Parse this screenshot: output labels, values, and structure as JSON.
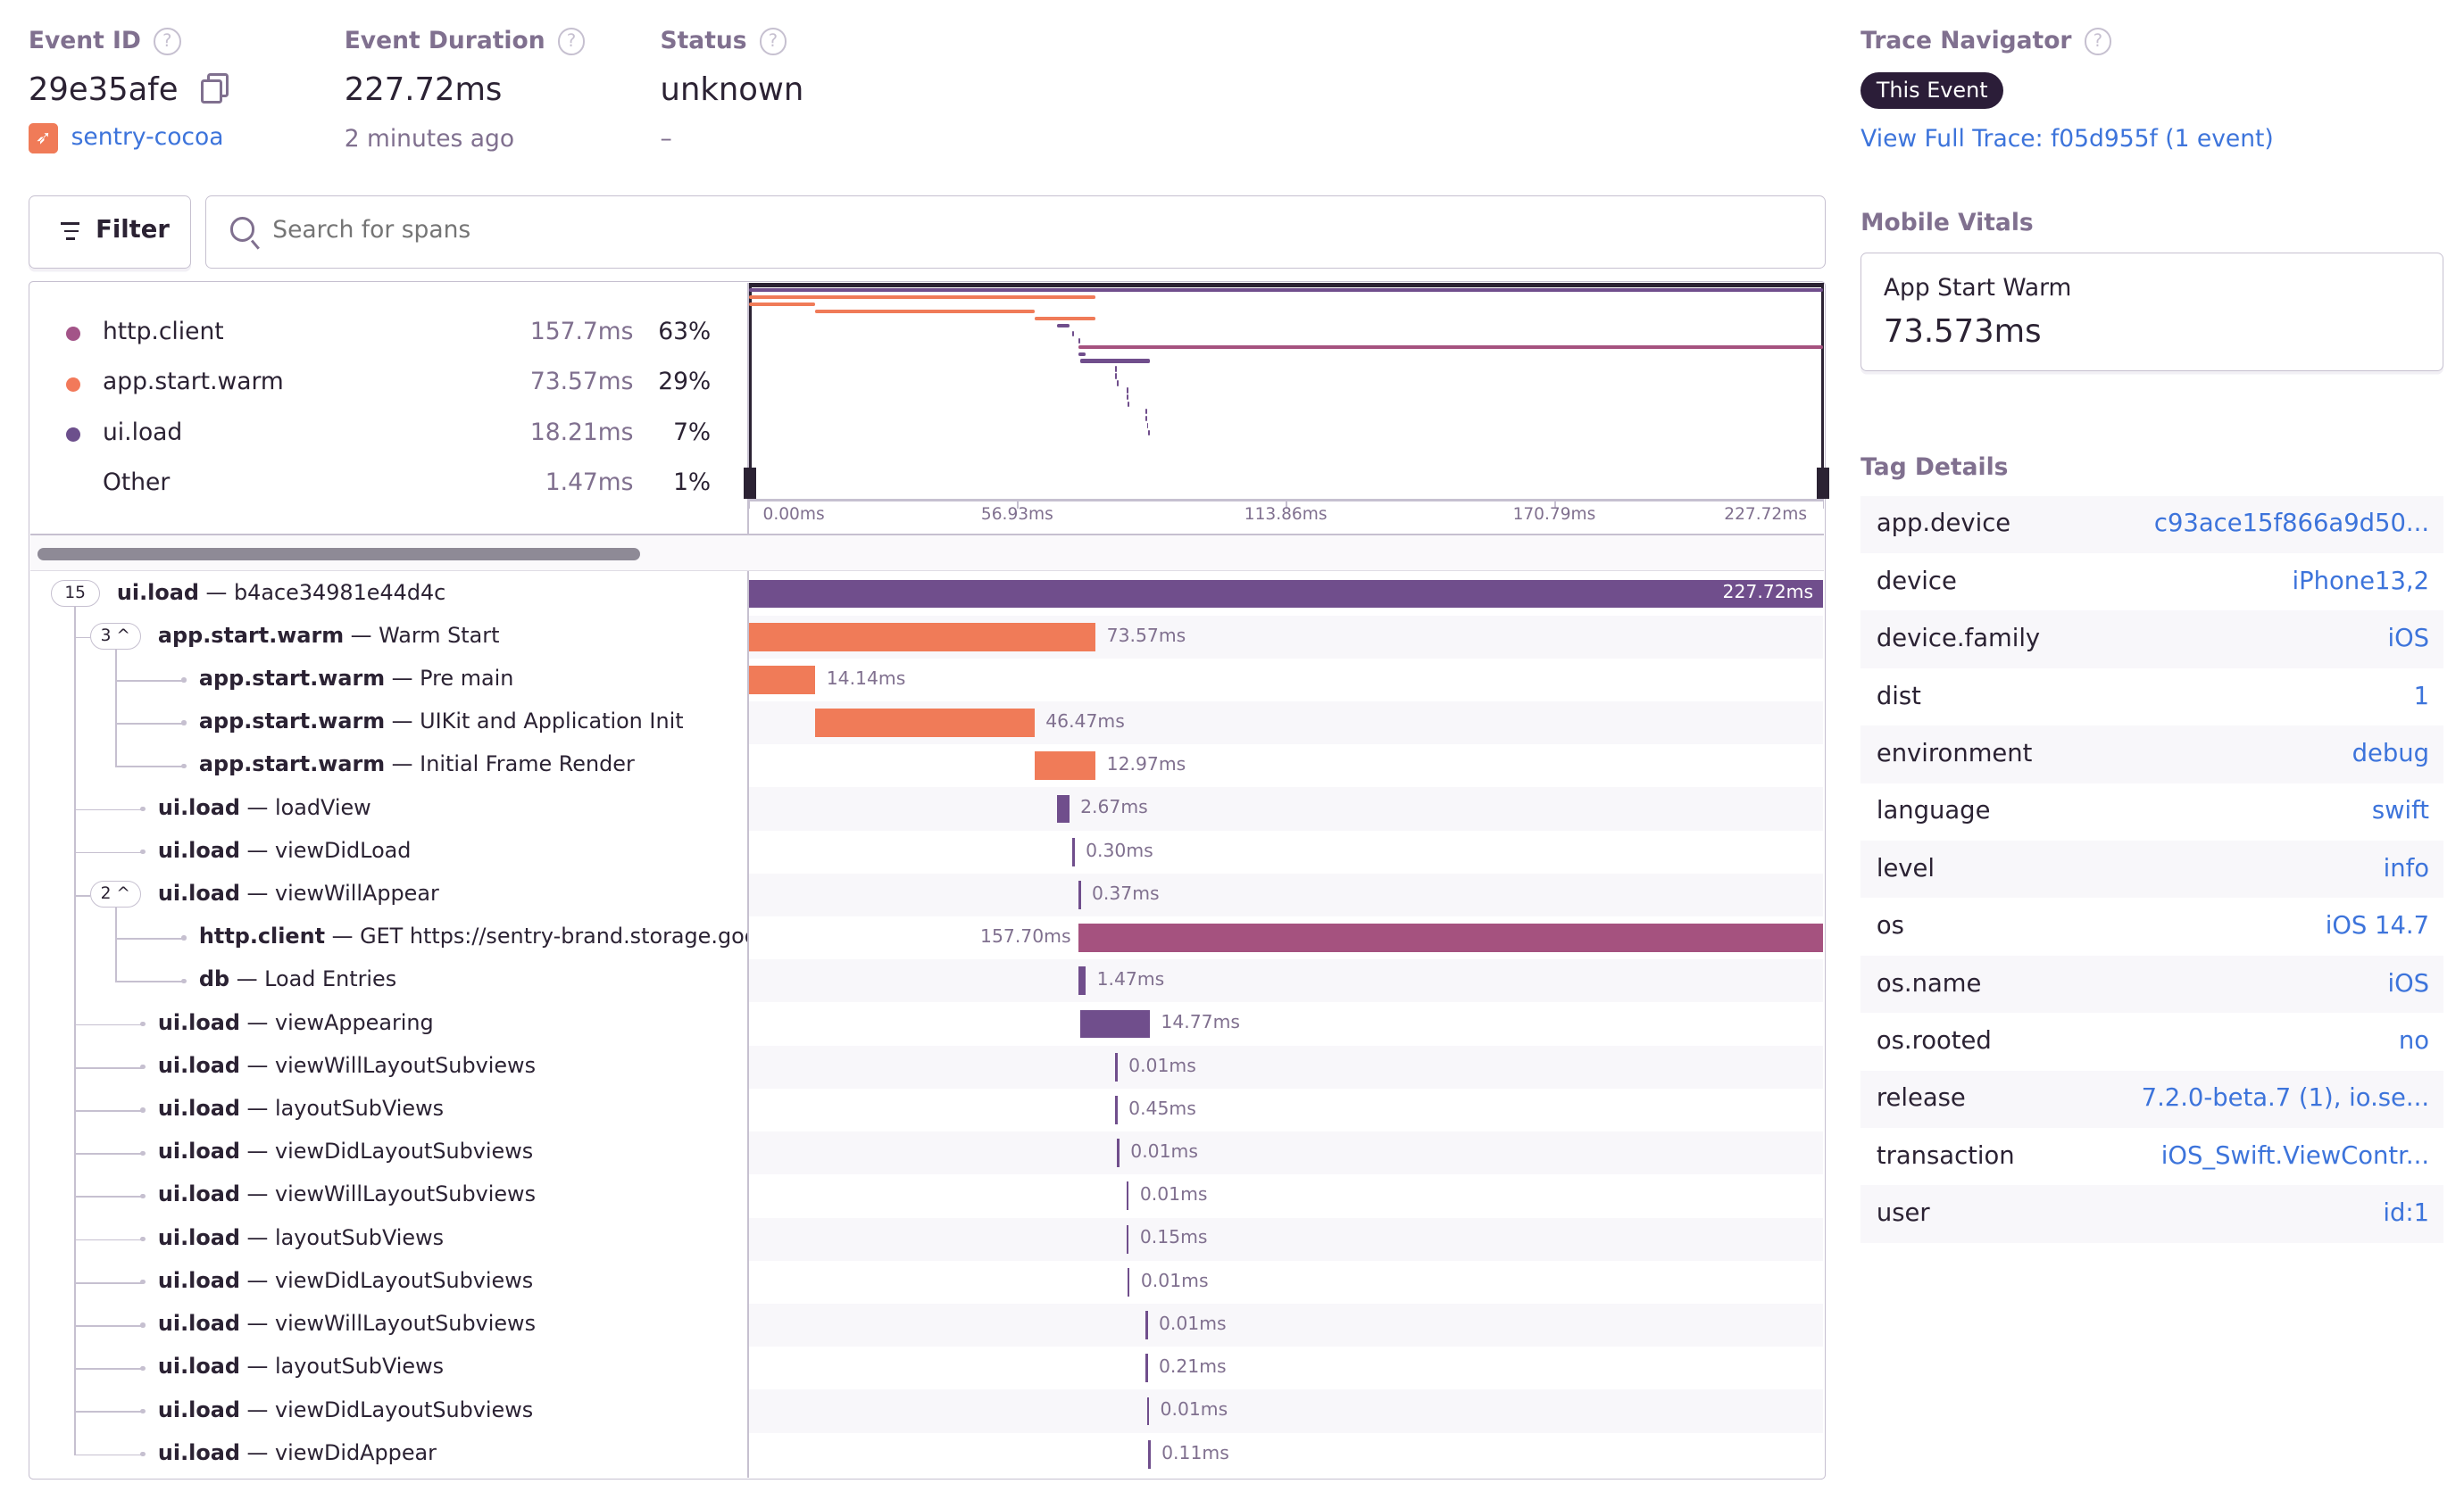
{
  "header": {
    "event_id_label": "Event ID",
    "event_id": "29e35afe",
    "project": "sentry-cocoa",
    "duration_label": "Event Duration",
    "duration": "227.72ms",
    "time_ago": "2 minutes ago",
    "status_label": "Status",
    "status": "unknown",
    "status_sub": "–",
    "help_glyph": "?"
  },
  "toolbar": {
    "filter_label": "Filter",
    "search_placeholder": "Search for spans"
  },
  "legend": [
    {
      "name": "http.client",
      "duration": "157.7ms",
      "percent": "63%",
      "color": "#a35488"
    },
    {
      "name": "app.start.warm",
      "duration": "73.57ms",
      "percent": "29%",
      "color": "#f2795a"
    },
    {
      "name": "ui.load",
      "duration": "18.21ms",
      "percent": "7%",
      "color": "#6c4f8c"
    },
    {
      "name": "Other",
      "duration": "1.47ms",
      "percent": "1%",
      "color": ""
    }
  ],
  "timeline": {
    "total_ms": 227.72,
    "ticks": [
      "0.00ms",
      "56.93ms",
      "113.86ms",
      "170.79ms",
      "227.72ms"
    ]
  },
  "colors": {
    "ui.load": "#704e8c",
    "app.start.warm": "#f07b58",
    "http.client": "#a5527f",
    "db": "#704e8c",
    "link": "#3d74db"
  },
  "spans": [
    {
      "op": "ui.load",
      "desc": "b4ace34981e44d4c",
      "duration": "227.72ms",
      "start_ms": 0,
      "duration_ms": 227.72,
      "depth": 0,
      "badge": "15"
    },
    {
      "op": "app.start.warm",
      "desc": "Warm Start",
      "duration": "73.57ms",
      "start_ms": 0,
      "duration_ms": 73.57,
      "depth": 1,
      "badge": "3 ^"
    },
    {
      "op": "app.start.warm",
      "desc": "Pre main",
      "duration": "14.14ms",
      "start_ms": 0,
      "duration_ms": 14.14,
      "depth": 2
    },
    {
      "op": "app.start.warm",
      "desc": "UIKit and Application Init",
      "duration": "46.47ms",
      "start_ms": 14.14,
      "duration_ms": 46.47,
      "depth": 2
    },
    {
      "op": "app.start.warm",
      "desc": "Initial Frame Render",
      "duration": "12.97ms",
      "start_ms": 60.6,
      "duration_ms": 12.97,
      "depth": 2
    },
    {
      "op": "ui.load",
      "desc": "loadView",
      "duration": "2.67ms",
      "start_ms": 65.3,
      "duration_ms": 2.67,
      "depth": 1
    },
    {
      "op": "ui.load",
      "desc": "viewDidLoad",
      "duration": "0.30ms",
      "start_ms": 68.6,
      "duration_ms": 0.3,
      "depth": 1
    },
    {
      "op": "ui.load",
      "desc": "viewWillAppear",
      "duration": "0.37ms",
      "start_ms": 69.9,
      "duration_ms": 0.37,
      "depth": 1,
      "badge": "2 ^"
    },
    {
      "op": "http.client",
      "desc": "GET https://sentry-brand.storage.googleapis.com",
      "duration": "157.70ms",
      "start_ms": 70.0,
      "duration_ms": 157.7,
      "depth": 2
    },
    {
      "op": "db",
      "desc": "Load Entries",
      "duration": "1.47ms",
      "start_ms": 70.0,
      "duration_ms": 1.47,
      "depth": 2
    },
    {
      "op": "ui.load",
      "desc": "viewAppearing",
      "duration": "14.77ms",
      "start_ms": 70.3,
      "duration_ms": 14.77,
      "depth": 1
    },
    {
      "op": "ui.load",
      "desc": "viewWillLayoutSubviews",
      "duration": "0.01ms",
      "start_ms": 77.7,
      "duration_ms": 0.01,
      "depth": 1
    },
    {
      "op": "ui.load",
      "desc": "layoutSubViews",
      "duration": "0.45ms",
      "start_ms": 77.7,
      "duration_ms": 0.45,
      "depth": 1
    },
    {
      "op": "ui.load",
      "desc": "viewDidLayoutSubviews",
      "duration": "0.01ms",
      "start_ms": 78.1,
      "duration_ms": 0.01,
      "depth": 1
    },
    {
      "op": "ui.load",
      "desc": "viewWillLayoutSubviews",
      "duration": "0.01ms",
      "start_ms": 80.1,
      "duration_ms": 0.01,
      "depth": 1
    },
    {
      "op": "ui.load",
      "desc": "layoutSubViews",
      "duration": "0.15ms",
      "start_ms": 80.1,
      "duration_ms": 0.15,
      "depth": 1
    },
    {
      "op": "ui.load",
      "desc": "viewDidLayoutSubviews",
      "duration": "0.01ms",
      "start_ms": 80.3,
      "duration_ms": 0.01,
      "depth": 1
    },
    {
      "op": "ui.load",
      "desc": "viewWillLayoutSubviews",
      "duration": "0.01ms",
      "start_ms": 84.1,
      "duration_ms": 0.01,
      "depth": 1
    },
    {
      "op": "ui.load",
      "desc": "layoutSubViews",
      "duration": "0.21ms",
      "start_ms": 84.1,
      "duration_ms": 0.21,
      "depth": 1
    },
    {
      "op": "ui.load",
      "desc": "viewDidLayoutSubviews",
      "duration": "0.01ms",
      "start_ms": 84.4,
      "duration_ms": 0.01,
      "depth": 1
    },
    {
      "op": "ui.load",
      "desc": "viewDidAppear",
      "duration": "0.11ms",
      "start_ms": 84.7,
      "duration_ms": 0.11,
      "depth": 1
    }
  ],
  "trace_navigator": {
    "label": "Trace Navigator",
    "this_event": "This Event",
    "view_full_trace": "View Full Trace: f05d955f (1 event)"
  },
  "mobile_vitals": {
    "label": "Mobile Vitals",
    "name": "App Start Warm",
    "value": "73.573ms"
  },
  "tag_details": {
    "label": "Tag Details",
    "tags": [
      {
        "key": "app.device",
        "value": "c93ace15f866a9d50..."
      },
      {
        "key": "device",
        "value": "iPhone13,2"
      },
      {
        "key": "device.family",
        "value": "iOS"
      },
      {
        "key": "dist",
        "value": "1"
      },
      {
        "key": "environment",
        "value": "debug"
      },
      {
        "key": "language",
        "value": "swift"
      },
      {
        "key": "level",
        "value": "info"
      },
      {
        "key": "os",
        "value": "iOS 14.7"
      },
      {
        "key": "os.name",
        "value": "iOS"
      },
      {
        "key": "os.rooted",
        "value": "no"
      },
      {
        "key": "release",
        "value": "7.2.0-beta.7 (1), io.se..."
      },
      {
        "key": "transaction",
        "value": "iOS_Swift.ViewContr..."
      },
      {
        "key": "user",
        "value": "id:1"
      }
    ]
  }
}
